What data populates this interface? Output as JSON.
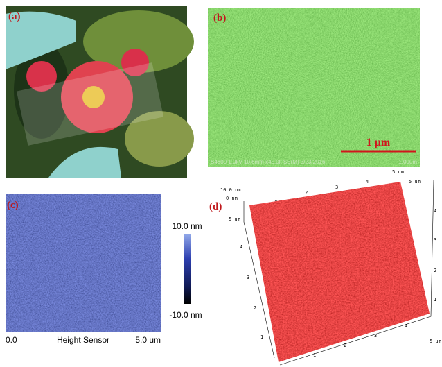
{
  "panels": {
    "a": {
      "label": "(a)"
    },
    "b": {
      "label": "(b)",
      "scale_bar": "1 μm",
      "info": "S4800 1.0kV 10.6mm x45.0k SE(M) 3/23/2016",
      "info_right": "1.00um"
    },
    "c": {
      "label": "(c)",
      "colorbar_max": "10.0 nm",
      "colorbar_min": "-10.0 nm",
      "x_start": "0.0",
      "x_label": "Height Sensor",
      "x_end": "5.0 um"
    },
    "d": {
      "label": "(d)",
      "z_max": "10.0 nm",
      "z_min": "0 nm",
      "axis_end": "5 um",
      "ticks": [
        "1",
        "2",
        "3",
        "4"
      ]
    }
  }
}
